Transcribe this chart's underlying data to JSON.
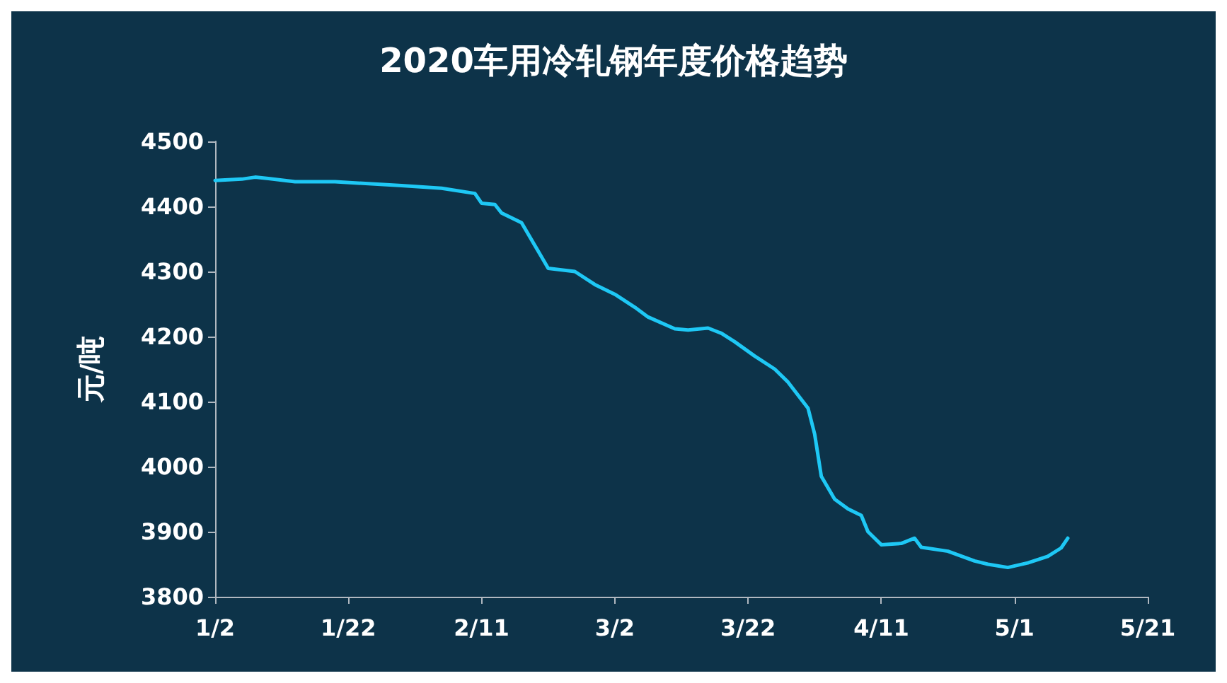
{
  "chart_data": {
    "type": "line",
    "title": "2020车用冷轧钢年度价格趋势",
    "ylabel": "元/吨",
    "x": [
      "2020-01-02",
      "2020-01-06",
      "2020-01-08",
      "2020-01-10",
      "2020-01-14",
      "2020-01-20",
      "2020-01-30",
      "2020-02-05",
      "2020-02-10",
      "2020-02-11",
      "2020-02-13",
      "2020-02-14",
      "2020-02-17",
      "2020-02-19",
      "2020-02-21",
      "2020-02-25",
      "2020-02-28",
      "2020-03-02",
      "2020-03-05",
      "2020-03-07",
      "2020-03-11",
      "2020-03-13",
      "2020-03-16",
      "2020-03-18",
      "2020-03-20",
      "2020-03-23",
      "2020-03-26",
      "2020-03-28",
      "2020-03-31",
      "2020-04-01",
      "2020-04-02",
      "2020-04-04",
      "2020-04-06",
      "2020-04-08",
      "2020-04-09",
      "2020-04-11",
      "2020-04-14",
      "2020-04-16",
      "2020-04-17",
      "2020-04-21",
      "2020-04-25",
      "2020-04-27",
      "2020-04-30",
      "2020-05-03",
      "2020-05-06",
      "2020-05-08",
      "2020-05-09"
    ],
    "series": [
      {
        "color": "#1ec8f5",
        "values": [
          4440,
          4442,
          4445,
          4443,
          4438,
          4438,
          4432,
          4428,
          4420,
          4405,
          4403,
          4390,
          4375,
          4340,
          4305,
          4300,
          4280,
          4265,
          4245,
          4230,
          4212,
          4210,
          4213,
          4205,
          4192,
          4170,
          4150,
          4130,
          4090,
          4050,
          3985,
          3950,
          3935,
          3925,
          3900,
          3880,
          3882,
          3890,
          3876,
          3870,
          3855,
          3850,
          3845,
          3852,
          3862,
          3875,
          3890
        ]
      }
    ],
    "xlim": [
      "2020-01-02",
      "2020-05-21"
    ],
    "xticks": [
      {
        "value": "2020-01-02",
        "label": "1/2"
      },
      {
        "value": "2020-01-22",
        "label": "1/22"
      },
      {
        "value": "2020-02-11",
        "label": "2/11"
      },
      {
        "value": "2020-03-02",
        "label": "3/2"
      },
      {
        "value": "2020-03-22",
        "label": "3/22"
      },
      {
        "value": "2020-04-11",
        "label": "4/11"
      },
      {
        "value": "2020-05-01",
        "label": "5/1"
      },
      {
        "value": "2020-05-21",
        "label": "5/21"
      }
    ],
    "ylim": [
      3800,
      4500
    ],
    "yticks": [
      3800,
      3900,
      4000,
      4100,
      4200,
      4300,
      4400,
      4500
    ],
    "grid": false,
    "marker": "none",
    "line_style": "solid"
  }
}
